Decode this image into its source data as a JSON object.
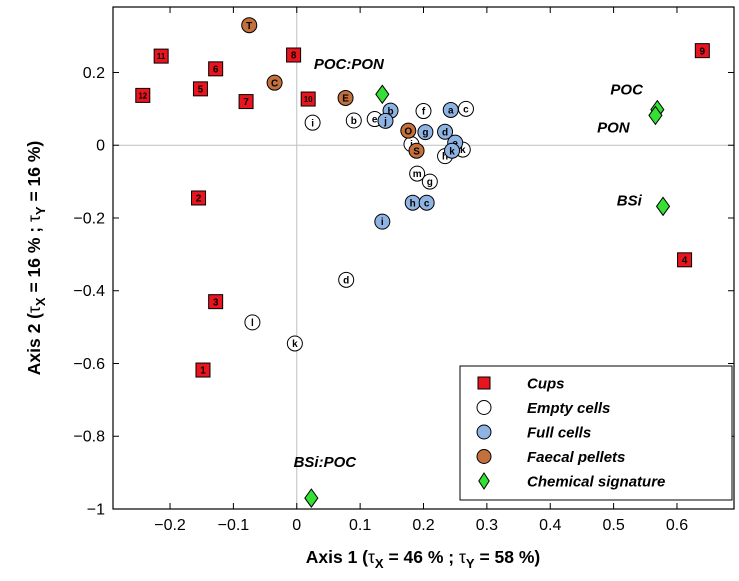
{
  "chart_data": {
    "type": "scatter",
    "xlabel": {
      "main": "Axis 1 (",
      "tau1": "τ",
      "sub1": "X",
      "mid": " = 46 % ; ",
      "tau2": "τ",
      "sub2": "Y",
      "end": " = 58 %)"
    },
    "ylabel": {
      "main": "Axis 2 (",
      "tau1": "τ",
      "sub1": "X",
      "mid": " = 16 % ; ",
      "tau2": "τ",
      "sub2": "Y",
      "end": " = 16 %)"
    },
    "xlim": [
      -0.29,
      0.69
    ],
    "ylim": [
      -1.0,
      0.38
    ],
    "xticks": [
      -0.2,
      -0.1,
      0,
      0.1,
      0.2,
      0.3,
      0.4,
      0.5,
      0.6
    ],
    "xtick_labels": [
      "−0.2",
      "−0.1",
      "0",
      "0.1",
      "0.2",
      "0.3",
      "0.4",
      "0.5",
      "0.6"
    ],
    "yticks": [
      0.2,
      0,
      -0.2,
      -0.4,
      -0.6,
      -0.8,
      -1
    ],
    "ytick_labels": [
      "0.2",
      "0",
      "−0.2",
      "−0.4",
      "−0.6",
      "−0.8",
      "−1"
    ],
    "zero_lines": true,
    "legend_position": "bottom-right",
    "series": [
      {
        "name": "Cups",
        "marker": "square",
        "color": "#e8141e",
        "text_color": "#000000",
        "points": [
          {
            "x": -0.148,
            "y": -0.618,
            "label": "1"
          },
          {
            "x": -0.155,
            "y": -0.145,
            "label": "2"
          },
          {
            "x": -0.128,
            "y": -0.43,
            "label": "3"
          },
          {
            "x": 0.612,
            "y": -0.315,
            "label": "4"
          },
          {
            "x": -0.152,
            "y": 0.155,
            "label": "5"
          },
          {
            "x": -0.128,
            "y": 0.21,
            "label": "6"
          },
          {
            "x": -0.08,
            "y": 0.12,
            "label": "7"
          },
          {
            "x": -0.005,
            "y": 0.248,
            "label": "8"
          },
          {
            "x": 0.64,
            "y": 0.26,
            "label": "9"
          },
          {
            "x": 0.018,
            "y": 0.127,
            "label": "10"
          },
          {
            "x": -0.214,
            "y": 0.245,
            "label": "11"
          },
          {
            "x": -0.243,
            "y": 0.137,
            "label": "12"
          }
        ]
      },
      {
        "name": "Empty cells",
        "marker": "circle",
        "color": "#ffffff",
        "text_color": "#000000",
        "points": [
          {
            "x": 0.078,
            "y": -0.37,
            "label": "d"
          },
          {
            "x": -0.07,
            "y": -0.487,
            "label": "l"
          },
          {
            "x": -0.003,
            "y": -0.545,
            "label": "k"
          },
          {
            "x": 0.025,
            "y": 0.062,
            "label": "i"
          },
          {
            "x": 0.09,
            "y": 0.068,
            "label": "b"
          },
          {
            "x": 0.123,
            "y": 0.072,
            "label": "e"
          },
          {
            "x": 0.2,
            "y": 0.094,
            "label": "f"
          },
          {
            "x": 0.267,
            "y": 0.1,
            "label": "c"
          },
          {
            "x": 0.181,
            "y": 0.003,
            "label": "i"
          },
          {
            "x": 0.234,
            "y": -0.03,
            "label": "h"
          },
          {
            "x": 0.262,
            "y": -0.012,
            "label": "k"
          },
          {
            "x": 0.19,
            "y": -0.078,
            "label": "m"
          },
          {
            "x": 0.21,
            "y": -0.1,
            "label": "g"
          }
        ]
      },
      {
        "name": "Full cells",
        "marker": "circle",
        "color": "#8fb4e3",
        "text_color": "#000000",
        "points": [
          {
            "x": 0.148,
            "y": 0.095,
            "label": "b"
          },
          {
            "x": 0.14,
            "y": 0.067,
            "label": "j"
          },
          {
            "x": 0.243,
            "y": 0.097,
            "label": "a"
          },
          {
            "x": 0.203,
            "y": 0.036,
            "label": "g"
          },
          {
            "x": 0.234,
            "y": 0.037,
            "label": "d"
          },
          {
            "x": 0.25,
            "y": 0.007,
            "label": "e"
          },
          {
            "x": 0.245,
            "y": -0.015,
            "label": "k"
          },
          {
            "x": 0.183,
            "y": -0.158,
            "label": "h"
          },
          {
            "x": 0.205,
            "y": -0.158,
            "label": "c"
          },
          {
            "x": 0.135,
            "y": -0.21,
            "label": "i"
          }
        ]
      },
      {
        "name": "Faecal pellets",
        "marker": "circle",
        "color": "#c4703c",
        "text_color": "#000000",
        "points": [
          {
            "x": -0.075,
            "y": 0.33,
            "label": "T"
          },
          {
            "x": -0.035,
            "y": 0.172,
            "label": "C"
          },
          {
            "x": 0.077,
            "y": 0.13,
            "label": "E"
          },
          {
            "x": 0.176,
            "y": 0.04,
            "label": "O"
          },
          {
            "x": 0.189,
            "y": -0.015,
            "label": "S"
          }
        ]
      },
      {
        "name": "Chemical signature",
        "marker": "diamond",
        "color": "#33e033",
        "text_color": "#000000",
        "points": [
          {
            "x": 0.135,
            "y": 0.14,
            "label": "POC:PON"
          },
          {
            "x": 0.569,
            "y": 0.098,
            "label": "POC"
          },
          {
            "x": 0.566,
            "y": 0.082,
            "label": "PON"
          },
          {
            "x": 0.578,
            "y": -0.168,
            "label": "BSi"
          },
          {
            "x": 0.023,
            "y": -0.97,
            "label": "BSi:POC"
          }
        ]
      }
    ],
    "annotations": [
      {
        "text": "POC:PON",
        "x": 0.027,
        "y": 0.21
      },
      {
        "text": "POC",
        "x": 0.495,
        "y": 0.14
      },
      {
        "text": "PON",
        "x": 0.474,
        "y": 0.035
      },
      {
        "text": "BSi",
        "x": 0.505,
        "y": -0.165
      },
      {
        "text": "BSi:POC",
        "x": -0.005,
        "y": -0.885
      }
    ]
  }
}
